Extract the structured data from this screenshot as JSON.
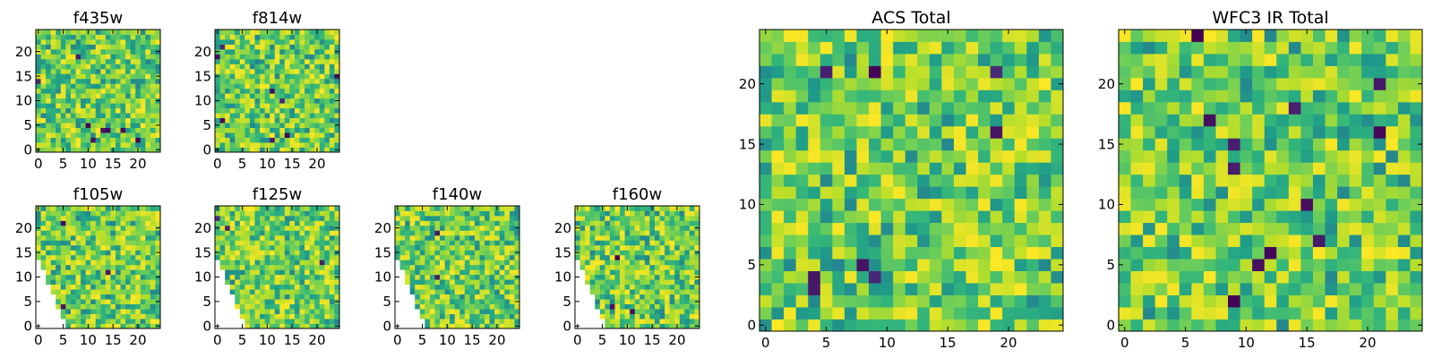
{
  "figure": {
    "colormap": "viridis",
    "colors": {
      "background": "#ffffff",
      "axes_edge": "#000000",
      "low": "#440154",
      "mid": "#21918c",
      "high": "#fde725"
    }
  },
  "chart_data": [
    {
      "type": "heatmap",
      "title": "f435w",
      "xlabel": "",
      "ylabel": "",
      "xlim": [
        -0.5,
        24.5
      ],
      "ylim": [
        -0.5,
        24.5
      ],
      "xticks": [
        0,
        5,
        10,
        15,
        20
      ],
      "yticks": [
        0,
        5,
        10,
        15,
        20
      ],
      "grid": false,
      "origin": "lower",
      "rows": 25,
      "cols": 25,
      "value_range": [
        0,
        1
      ],
      "seed": 11,
      "mask": "none",
      "hot_pixels": 8
    },
    {
      "type": "heatmap",
      "title": "f814w",
      "xlabel": "",
      "ylabel": "",
      "xlim": [
        -0.5,
        24.5
      ],
      "ylim": [
        -0.5,
        24.5
      ],
      "xticks": [
        0,
        5,
        10,
        15,
        20
      ],
      "yticks": [
        0,
        5,
        10,
        15,
        20
      ],
      "grid": false,
      "origin": "lower",
      "rows": 25,
      "cols": 25,
      "value_range": [
        0,
        1
      ],
      "seed": 23,
      "mask": "none",
      "hot_pixels": 8
    },
    {
      "type": "heatmap",
      "title": "f105w",
      "xlabel": "",
      "ylabel": "",
      "xlim": [
        -0.5,
        24.5
      ],
      "ylim": [
        -0.5,
        24.5
      ],
      "xticks": [
        0,
        5,
        10,
        15,
        20
      ],
      "yticks": [
        0,
        5,
        10,
        15,
        20
      ],
      "grid": false,
      "origin": "lower",
      "rows": 25,
      "cols": 25,
      "value_range": [
        0,
        1
      ],
      "seed": 37,
      "mask": "lower-left-triangle",
      "hot_pixels": 3
    },
    {
      "type": "heatmap",
      "title": "f125w",
      "xlabel": "",
      "ylabel": "",
      "xlim": [
        -0.5,
        24.5
      ],
      "ylim": [
        -0.5,
        24.5
      ],
      "xticks": [
        0,
        5,
        10,
        15,
        20
      ],
      "yticks": [
        0,
        5,
        10,
        15,
        20
      ],
      "grid": false,
      "origin": "lower",
      "rows": 25,
      "cols": 25,
      "value_range": [
        0,
        1
      ],
      "seed": 41,
      "mask": "lower-left-triangle",
      "hot_pixels": 3
    },
    {
      "type": "heatmap",
      "title": "f140w",
      "xlabel": "",
      "ylabel": "",
      "xlim": [
        -0.5,
        24.5
      ],
      "ylim": [
        -0.5,
        24.5
      ],
      "xticks": [
        0,
        5,
        10,
        15,
        20
      ],
      "yticks": [
        0,
        5,
        10,
        15,
        20
      ],
      "grid": false,
      "origin": "lower",
      "rows": 25,
      "cols": 25,
      "value_range": [
        0,
        1
      ],
      "seed": 53,
      "mask": "lower-left-triangle",
      "hot_pixels": 2
    },
    {
      "type": "heatmap",
      "title": "f160w",
      "xlabel": "",
      "ylabel": "",
      "xlim": [
        -0.5,
        24.5
      ],
      "ylim": [
        -0.5,
        24.5
      ],
      "xticks": [
        0,
        5,
        10,
        15,
        20
      ],
      "yticks": [
        0,
        5,
        10,
        15,
        20
      ],
      "grid": false,
      "origin": "lower",
      "rows": 25,
      "cols": 25,
      "value_range": [
        0,
        1
      ],
      "seed": 67,
      "mask": "lower-left-triangle",
      "hot_pixels": 3
    },
    {
      "type": "heatmap",
      "title": "ACS Total",
      "xlabel": "",
      "ylabel": "",
      "xlim": [
        -0.5,
        24.5
      ],
      "ylim": [
        -0.5,
        24.5
      ],
      "xticks": [
        0,
        5,
        10,
        15,
        20
      ],
      "yticks": [
        0,
        5,
        10,
        15,
        20
      ],
      "grid": false,
      "origin": "lower",
      "rows": 25,
      "cols": 25,
      "value_range": [
        0,
        1
      ],
      "seed": 79,
      "mask": "none",
      "hot_pixels": 8
    },
    {
      "type": "heatmap",
      "title": "WFC3 IR Total",
      "xlabel": "",
      "ylabel": "",
      "xlim": [
        -0.5,
        24.5
      ],
      "ylim": [
        -0.5,
        24.5
      ],
      "xticks": [
        0,
        5,
        10,
        15,
        20
      ],
      "yticks": [
        0,
        5,
        10,
        15,
        20
      ],
      "grid": false,
      "origin": "lower",
      "rows": 25,
      "cols": 25,
      "value_range": [
        0,
        1
      ],
      "seed": 97,
      "mask": "none",
      "hot_pixels": 12
    }
  ]
}
